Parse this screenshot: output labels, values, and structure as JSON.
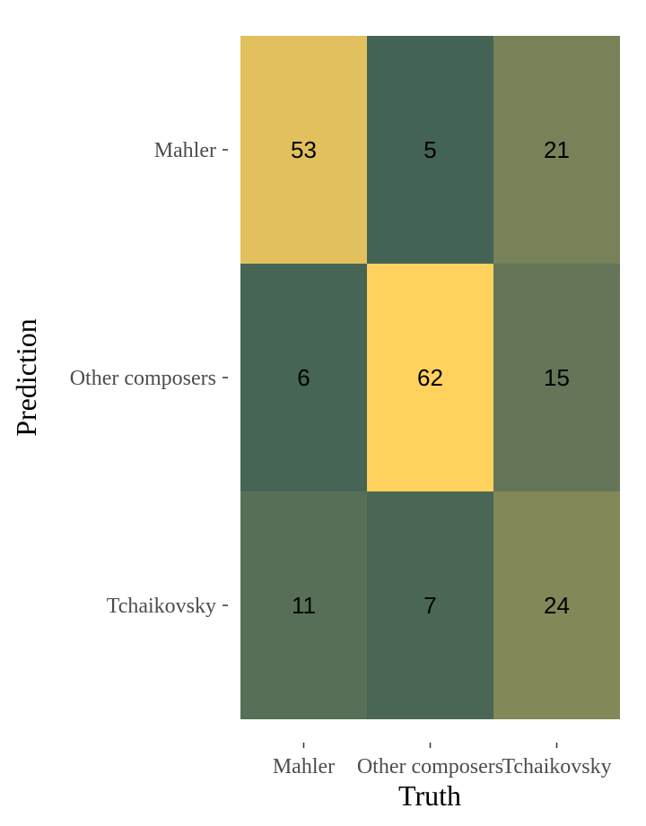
{
  "chart_data": {
    "type": "heatmap",
    "title": "",
    "xlabel": "Truth",
    "ylabel": "Prediction",
    "x_categories": [
      "Mahler",
      "Other composers",
      "Tchaikovsky"
    ],
    "y_categories": [
      "Mahler",
      "Other composers",
      "Tchaikovsky"
    ],
    "values": [
      [
        53,
        5,
        21
      ],
      [
        6,
        62,
        15
      ],
      [
        11,
        7,
        24
      ]
    ],
    "color_low": "#436355",
    "color_high": "#FFD25E",
    "value_range": [
      5,
      62
    ],
    "grid": false,
    "legend": "none"
  }
}
